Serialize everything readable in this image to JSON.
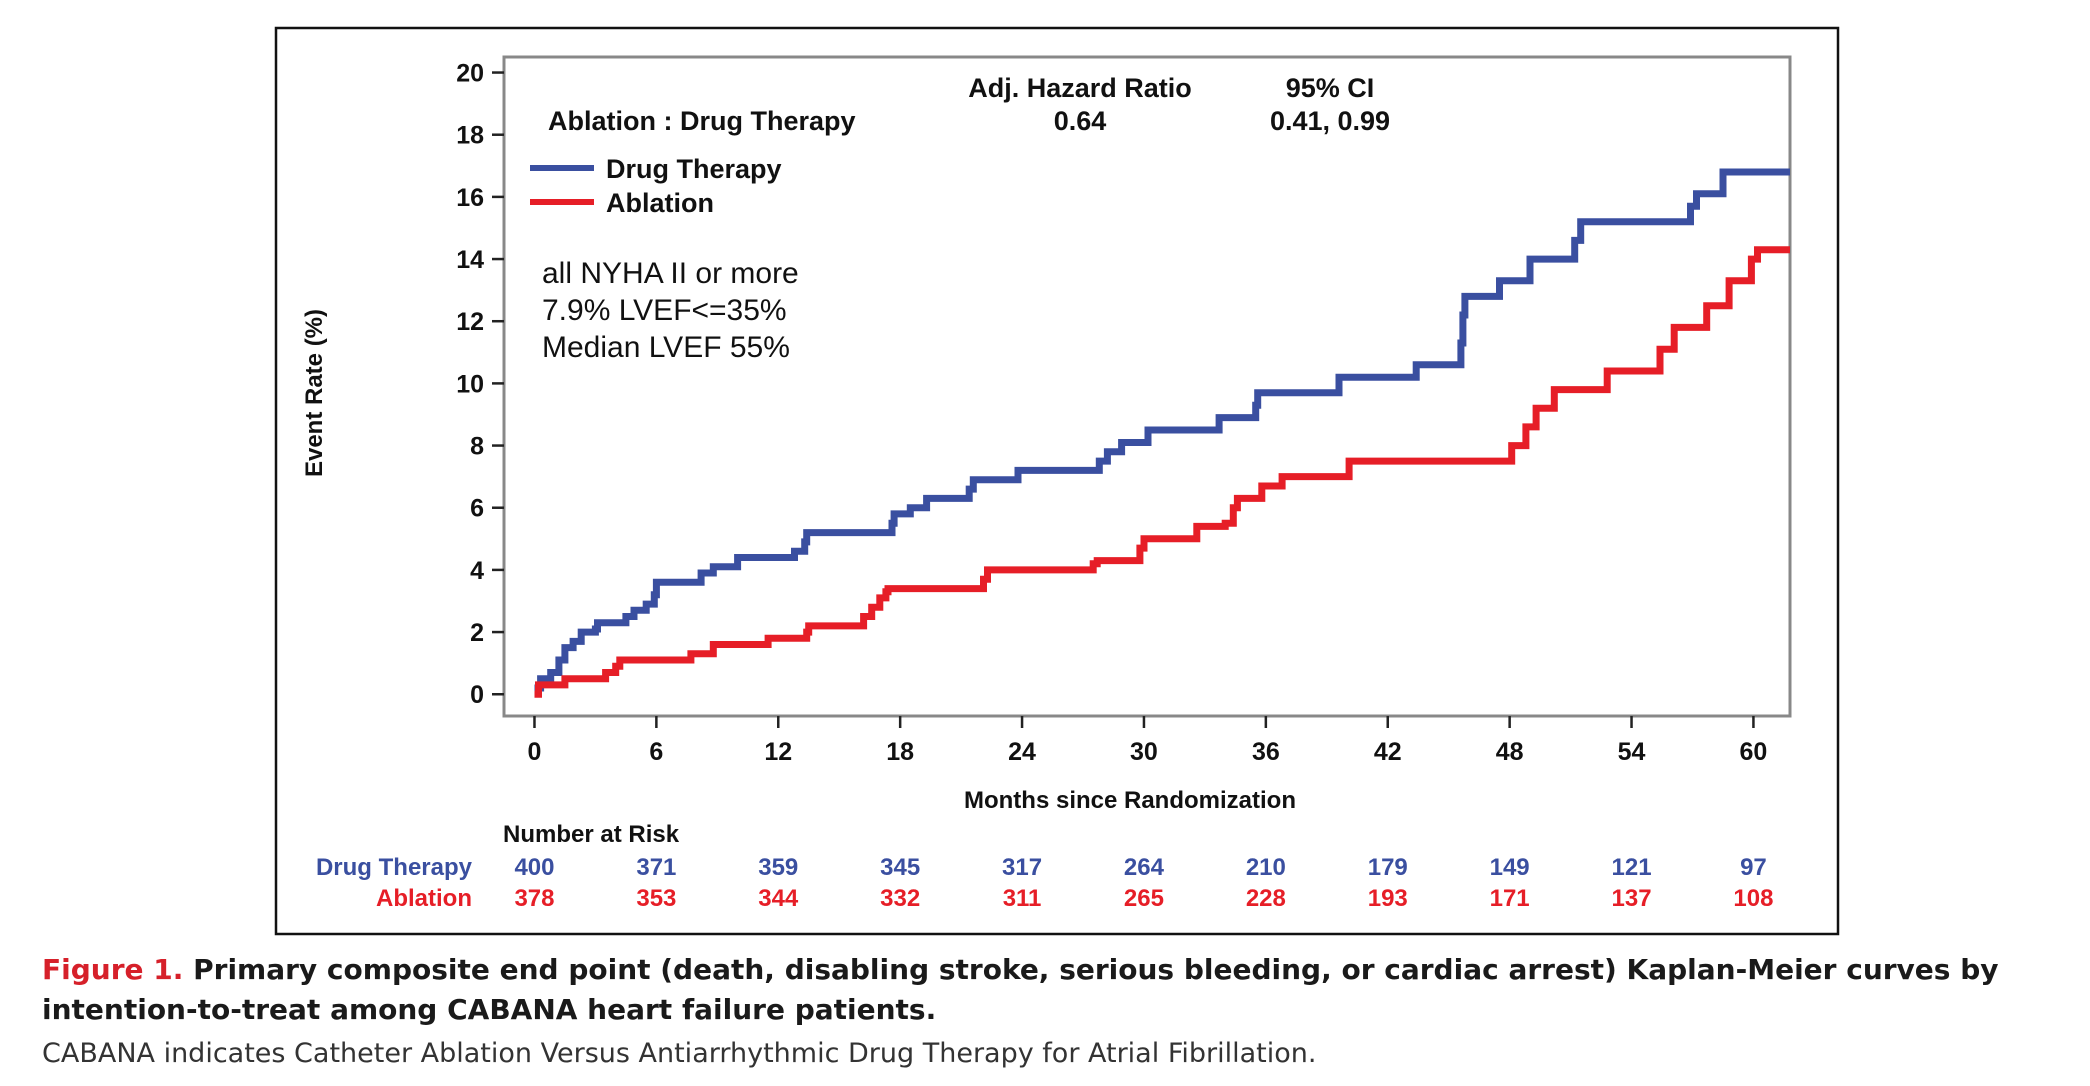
{
  "chart_data": {
    "type": "line",
    "step": true,
    "xlabel": "Months since Randomization",
    "ylabel": "Event Rate (%)",
    "xlim": [
      -1.5,
      61.8
    ],
    "ylim": [
      -0.7,
      20.5
    ],
    "xticks": [
      0,
      6,
      12,
      18,
      24,
      30,
      36,
      42,
      48,
      54,
      60
    ],
    "yticks": [
      0,
      2,
      4,
      6,
      8,
      10,
      12,
      14,
      16,
      18,
      20
    ],
    "grid": false,
    "legend_position": "top-left",
    "series": [
      {
        "name": "Drug Therapy",
        "color": "#3a4fa0",
        "points": [
          [
            0,
            0.2
          ],
          [
            0.3,
            0.5
          ],
          [
            0.8,
            0.7
          ],
          [
            1.2,
            1.1
          ],
          [
            1.5,
            1.5
          ],
          [
            1.9,
            1.7
          ],
          [
            2.3,
            2.0
          ],
          [
            3,
            2.1
          ],
          [
            3.1,
            2.3
          ],
          [
            4.5,
            2.5
          ],
          [
            4.9,
            2.7
          ],
          [
            5.5,
            2.9
          ],
          [
            5.9,
            3.2
          ],
          [
            6,
            3.6
          ],
          [
            8.2,
            3.9
          ],
          [
            8.8,
            4.1
          ],
          [
            10,
            4.4
          ],
          [
            12.8,
            4.6
          ],
          [
            13.3,
            4.9
          ],
          [
            13.4,
            5.2
          ],
          [
            17.6,
            5.5
          ],
          [
            17.7,
            5.8
          ],
          [
            18.5,
            6.0
          ],
          [
            19.3,
            6.3
          ],
          [
            21.4,
            6.6
          ],
          [
            21.6,
            6.9
          ],
          [
            23.8,
            7.2
          ],
          [
            27.8,
            7.5
          ],
          [
            28.2,
            7.8
          ],
          [
            28.9,
            8.1
          ],
          [
            30.2,
            8.5
          ],
          [
            33.7,
            8.9
          ],
          [
            35.5,
            9.3
          ],
          [
            35.6,
            9.7
          ],
          [
            39.6,
            10.2
          ],
          [
            43.4,
            10.6
          ],
          [
            45.6,
            11.3
          ],
          [
            45.7,
            12.2
          ],
          [
            45.8,
            12.8
          ],
          [
            47.5,
            13.3
          ],
          [
            49,
            14.0
          ],
          [
            51.2,
            14.6
          ],
          [
            51.5,
            15.2
          ],
          [
            56.9,
            15.7
          ],
          [
            57.2,
            16.1
          ],
          [
            58.5,
            16.8
          ],
          [
            61.8,
            16.8
          ]
        ]
      },
      {
        "name": "Ablation",
        "color": "#e61e27",
        "points": [
          [
            0,
            0.0
          ],
          [
            0.2,
            0.3
          ],
          [
            1.5,
            0.5
          ],
          [
            3.5,
            0.7
          ],
          [
            4,
            0.9
          ],
          [
            4.2,
            1.1
          ],
          [
            7.7,
            1.3
          ],
          [
            8.8,
            1.6
          ],
          [
            11.5,
            1.8
          ],
          [
            13.4,
            2.0
          ],
          [
            13.5,
            2.2
          ],
          [
            16.2,
            2.5
          ],
          [
            16.6,
            2.8
          ],
          [
            17,
            3.1
          ],
          [
            17.3,
            3.3
          ],
          [
            17.4,
            3.4
          ],
          [
            22.1,
            3.7
          ],
          [
            22.3,
            4.0
          ],
          [
            27.5,
            4.2
          ],
          [
            27.7,
            4.3
          ],
          [
            29.8,
            4.7
          ],
          [
            30,
            5.0
          ],
          [
            32.6,
            5.4
          ],
          [
            34,
            5.5
          ],
          [
            34.4,
            6.0
          ],
          [
            34.6,
            6.3
          ],
          [
            35.8,
            6.7
          ],
          [
            36.8,
            7.0
          ],
          [
            40.1,
            7.5
          ],
          [
            48.1,
            8.0
          ],
          [
            48.8,
            8.6
          ],
          [
            49.3,
            9.2
          ],
          [
            50.2,
            9.8
          ],
          [
            52.8,
            10.4
          ],
          [
            55.4,
            11.1
          ],
          [
            56.1,
            11.8
          ],
          [
            57.7,
            12.5
          ],
          [
            58.8,
            13.3
          ],
          [
            59.9,
            14.0
          ],
          [
            60.2,
            14.3
          ],
          [
            61.8,
            14.3
          ]
        ]
      }
    ],
    "hazard_table": {
      "comparison": "Ablation : Drug Therapy",
      "hr_header": "Adj. Hazard Ratio",
      "ci_header": "95% CI",
      "hr_value": "0.64",
      "ci_value": "0.41, 0.99"
    },
    "annotations": [
      "all NYHA II or more",
      "7.9% LVEF<=35%",
      "Median LVEF 55%"
    ],
    "risk_table": {
      "title": "Number at Risk",
      "rows": [
        {
          "name": "Drug Therapy",
          "color": "#3a4fa0",
          "values": [
            "400",
            "371",
            "359",
            "345",
            "317",
            "264",
            "210",
            "179",
            "149",
            "121",
            "97"
          ]
        },
        {
          "name": "Ablation",
          "color": "#e61e27",
          "values": [
            "378",
            "353",
            "344",
            "332",
            "311",
            "265",
            "228",
            "193",
            "171",
            "137",
            "108"
          ]
        }
      ]
    }
  },
  "caption": {
    "label": "Figure 1.",
    "title": " Primary composite end point (death, disabling stroke, serious bleeding, or cardiac arrest) Kaplan-Meier curves by intention-to-treat among CABANA heart failure patients.",
    "note": "CABANA indicates Catheter Ablation Versus Antiarrhythmic Drug Therapy for Atrial Fibrillation."
  }
}
